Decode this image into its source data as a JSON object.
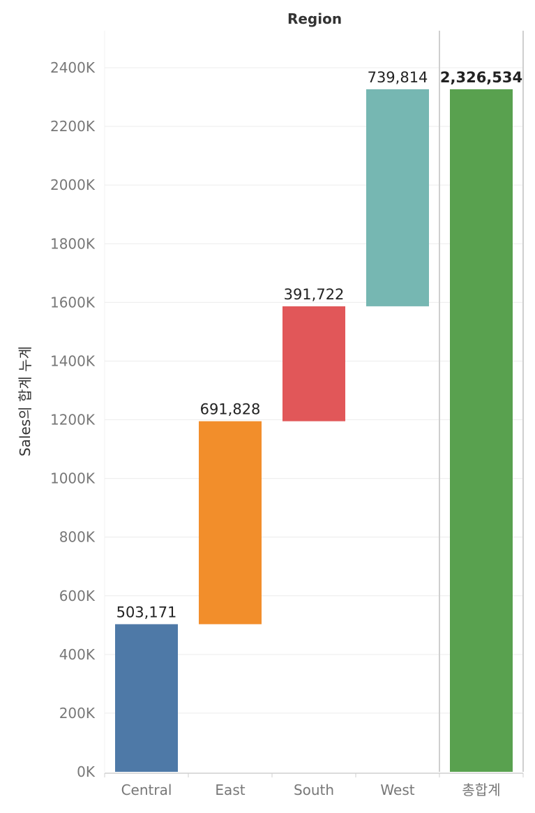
{
  "chart_data": {
    "type": "bar",
    "subtype": "waterfall",
    "header": "Region",
    "ylabel": "Sales의 합계 누계",
    "categories": [
      "Central",
      "East",
      "South",
      "West"
    ],
    "values": [
      503171,
      691828,
      391722,
      739814
    ],
    "value_labels": [
      "503,171",
      "691,828",
      "391,722",
      "739,814"
    ],
    "total": {
      "label": "총합계",
      "value": 2326534,
      "value_label": "2,326,534"
    },
    "colors": [
      "#4e79a7",
      "#f28e2b",
      "#e15759",
      "#76b7b2"
    ],
    "total_color": "#59a14f",
    "ylim": [
      0,
      2550000
    ],
    "yticks": [
      0,
      200000,
      400000,
      600000,
      800000,
      1000000,
      1200000,
      1400000,
      1600000,
      1800000,
      2000000,
      2200000,
      2400000
    ],
    "ytick_labels": [
      "0K",
      "200K",
      "400K",
      "600K",
      "800K",
      "1000K",
      "1200K",
      "1400K",
      "1600K",
      "1800K",
      "2000K",
      "2200K",
      "2400K"
    ],
    "grid": true,
    "legend": "none"
  }
}
